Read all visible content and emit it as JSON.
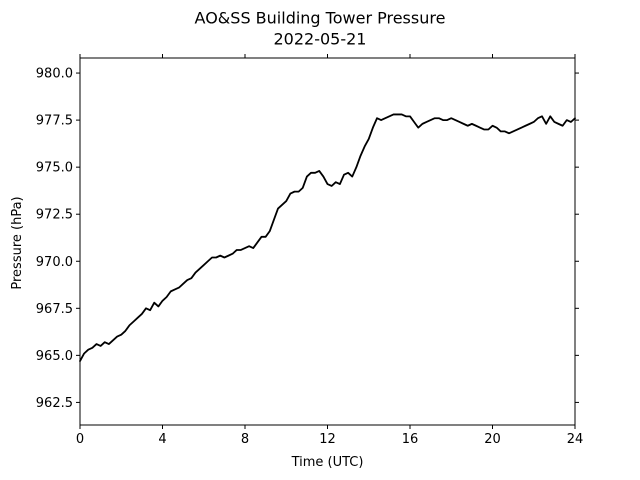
{
  "chart_data": {
    "type": "line",
    "title": "AO&SS Building Tower Pressure",
    "subtitle": "2022-05-21",
    "xlabel": "Time (UTC)",
    "ylabel": "Pressure (hPa)",
    "xlim": [
      0,
      24
    ],
    "ylim": [
      961.3,
      980.8
    ],
    "xticks": [
      0,
      4,
      8,
      12,
      16,
      20,
      24
    ],
    "xtick_labels": [
      "0",
      "4",
      "8",
      "12",
      "16",
      "20",
      "24"
    ],
    "yticks": [
      962.5,
      965.0,
      967.5,
      970.0,
      972.5,
      975.0,
      977.5,
      980.0
    ],
    "ytick_labels": [
      "962.5",
      "965.0",
      "967.5",
      "970.0",
      "972.5",
      "975.0",
      "977.5",
      "980.0"
    ],
    "grid": false,
    "series": [
      {
        "color": "#000000",
        "x": [
          0,
          0.2,
          0.4,
          0.6,
          0.8,
          1.0,
          1.2,
          1.4,
          1.6,
          1.8,
          2.0,
          2.2,
          2.4,
          2.6,
          2.8,
          3.0,
          3.2,
          3.4,
          3.6,
          3.8,
          4.0,
          4.2,
          4.4,
          4.6,
          4.8,
          5.0,
          5.2,
          5.4,
          5.6,
          5.8,
          6.0,
          6.2,
          6.4,
          6.6,
          6.8,
          7.0,
          7.2,
          7.4,
          7.6,
          7.8,
          8.0,
          8.2,
          8.4,
          8.6,
          8.8,
          9.0,
          9.2,
          9.4,
          9.6,
          9.8,
          10.0,
          10.2,
          10.4,
          10.6,
          10.8,
          11.0,
          11.2,
          11.4,
          11.6,
          11.8,
          12.0,
          12.2,
          12.4,
          12.6,
          12.8,
          13.0,
          13.2,
          13.4,
          13.6,
          13.8,
          14.0,
          14.2,
          14.4,
          14.6,
          14.8,
          15.0,
          15.2,
          15.4,
          15.6,
          15.8,
          16.0,
          16.2,
          16.4,
          16.6,
          16.8,
          17.0,
          17.2,
          17.4,
          17.6,
          17.8,
          18.0,
          18.2,
          18.4,
          18.6,
          18.8,
          19.0,
          19.2,
          19.4,
          19.6,
          19.8,
          20.0,
          20.2,
          20.4,
          20.6,
          20.8,
          21.0,
          21.2,
          21.4,
          21.6,
          21.8,
          22.0,
          22.2,
          22.4,
          22.6,
          22.8,
          23.0,
          23.2,
          23.4,
          23.6,
          23.8,
          24.0
        ],
        "y": [
          964.7,
          965.1,
          965.3,
          965.4,
          965.6,
          965.5,
          965.7,
          965.6,
          965.8,
          966.0,
          966.1,
          966.3,
          966.6,
          966.8,
          967.0,
          967.2,
          967.5,
          967.4,
          967.8,
          967.6,
          967.9,
          968.1,
          968.4,
          968.5,
          968.6,
          968.8,
          969.0,
          969.1,
          969.4,
          969.6,
          969.8,
          970.0,
          970.2,
          970.2,
          970.3,
          970.2,
          970.3,
          970.4,
          970.6,
          970.6,
          970.7,
          970.8,
          970.7,
          971.0,
          971.3,
          971.3,
          971.6,
          972.2,
          972.8,
          973.0,
          973.2,
          973.6,
          973.7,
          973.7,
          973.9,
          974.5,
          974.7,
          974.7,
          974.8,
          974.5,
          974.1,
          974.0,
          974.2,
          974.1,
          974.6,
          974.7,
          974.5,
          975.0,
          975.6,
          976.1,
          976.5,
          977.1,
          977.6,
          977.5,
          977.6,
          977.7,
          977.8,
          977.8,
          977.8,
          977.7,
          977.7,
          977.4,
          977.1,
          977.3,
          977.4,
          977.5,
          977.6,
          977.6,
          977.5,
          977.5,
          977.6,
          977.5,
          977.4,
          977.3,
          977.2,
          977.3,
          977.2,
          977.1,
          977.0,
          977.0,
          977.2,
          977.1,
          976.9,
          976.9,
          976.8,
          976.9,
          977.0,
          977.1,
          977.2,
          977.3,
          977.4,
          977.6,
          977.7,
          977.3,
          977.7,
          977.4,
          977.3,
          977.2,
          977.5,
          977.4,
          977.6
        ]
      }
    ]
  }
}
